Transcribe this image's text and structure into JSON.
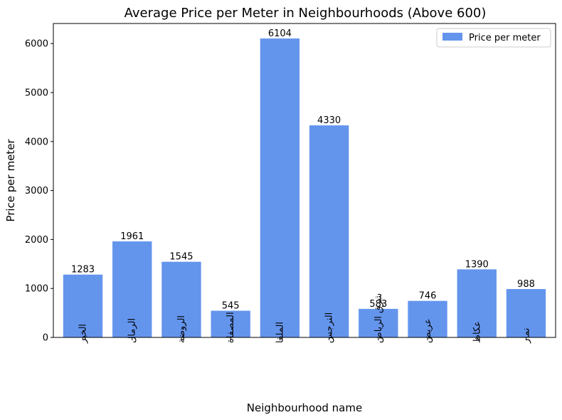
{
  "chart_data": {
    "type": "bar",
    "title": "Average Price per Meter in Neighbourhoods (Above 600)",
    "xlabel": "Neighbourhood name",
    "ylabel": "Price per meter",
    "categories": [
      "الخير",
      "الرمال",
      "الروضة",
      "المصفاة",
      "الملقا",
      "النرجس",
      "شرق الرياض",
      "عريض",
      "عكاظ",
      "نمار"
    ],
    "series": [
      {
        "name": "Price per meter",
        "values": [
          1283,
          1961,
          1545,
          545,
          6104,
          4330,
          583,
          746,
          1390,
          988
        ]
      }
    ],
    "ylim": [
      0,
      6410
    ],
    "yticks": [
      0,
      1000,
      2000,
      3000,
      4000,
      5000,
      6000
    ],
    "legend_position": "top-right",
    "grid": false,
    "colors": {
      "bar": "#6495ED"
    }
  }
}
